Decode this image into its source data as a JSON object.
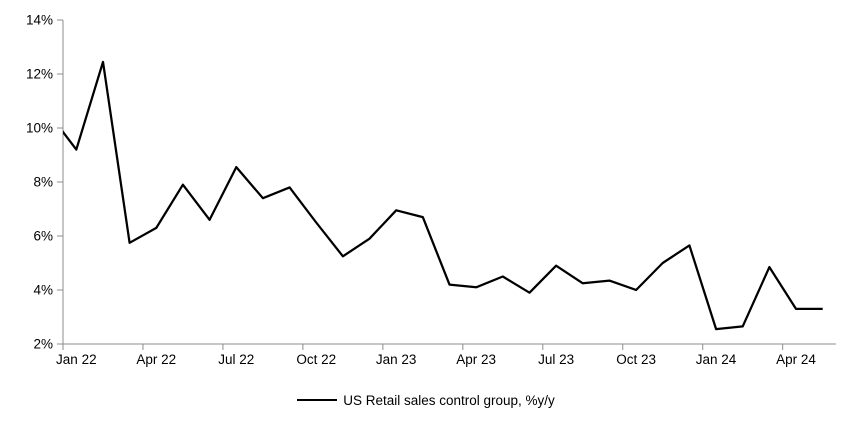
{
  "chart_data": {
    "type": "line",
    "title": "",
    "xlabel": "",
    "ylabel": "",
    "x": [
      "Jan 22",
      "Feb 22",
      "Mar 22",
      "Apr 22",
      "May 22",
      "Jun 22",
      "Jul 22",
      "Aug 22",
      "Sep 22",
      "Oct 22",
      "Nov 22",
      "Dec 22",
      "Jan 23",
      "Feb 23",
      "Mar 23",
      "Apr 23",
      "May 23",
      "Jun 23",
      "Jul 23",
      "Aug 23",
      "Sep 23",
      "Oct 23",
      "Nov 23",
      "Dec 23",
      "Jan 24",
      "Feb 24",
      "Mar 24",
      "Apr 24",
      "May 24"
    ],
    "series": [
      {
        "name": "US Retail sales control group, %y/y",
        "color": "#000000",
        "pre_point": {
          "label": "Dec 21",
          "value": 10.5
        },
        "values": [
          9.2,
          12.45,
          5.75,
          6.3,
          7.9,
          6.6,
          8.55,
          7.4,
          7.8,
          6.5,
          5.25,
          5.9,
          6.95,
          6.7,
          4.2,
          4.1,
          4.5,
          3.9,
          4.9,
          4.25,
          4.35,
          4.0,
          5.0,
          5.65,
          2.55,
          2.65,
          4.85,
          3.3,
          3.3
        ]
      }
    ],
    "ylim": [
      2,
      14
    ],
    "yticks": [
      14,
      12,
      10,
      8,
      6,
      4,
      2
    ],
    "ytick_suffix": "%",
    "xtick_labels": [
      "Jan 22",
      "Apr 22",
      "Jul 22",
      "Oct 22",
      "Jan 23",
      "Apr 23",
      "Jul 23",
      "Oct 23",
      "Jan 24",
      "Apr 24"
    ],
    "xtick_every": 3,
    "grid": false,
    "legend_position": "bottom-center",
    "axis_color": "#8c8c8c",
    "text_color": "#000000",
    "background": "#ffffff"
  }
}
